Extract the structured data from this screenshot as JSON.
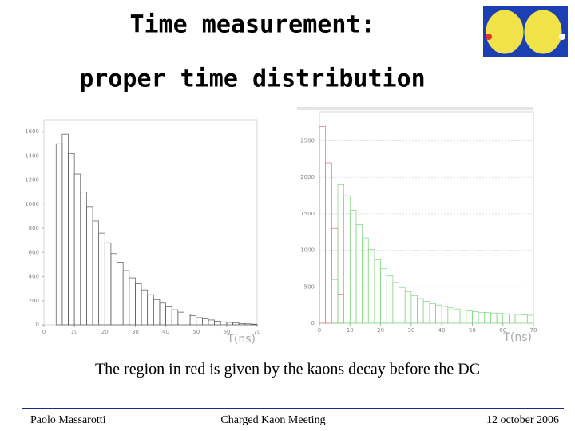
{
  "slide": {
    "title": "Time measurement:",
    "subtitle": "proper time distribution",
    "caption": "The region in red is given by the kaons decay before the DC",
    "footer": {
      "author": "Paolo Massarotti",
      "event": "Charged Kaon Meeting",
      "date": "12 october 2006"
    }
  },
  "chart_data": [
    {
      "type": "histogram",
      "x_label": "T(ns)",
      "bins": [
        0,
        2,
        4,
        6,
        8,
        10,
        12,
        14,
        16,
        18,
        20,
        22,
        24,
        26,
        28,
        30,
        32,
        34,
        36,
        38,
        40,
        42,
        44,
        46,
        48,
        50,
        52,
        54,
        56,
        58,
        60,
        62,
        64,
        66,
        68,
        70
      ],
      "series": [
        {
          "color": "#555555",
          "values": [
            0,
            0,
            1500,
            1580,
            1420,
            1250,
            1100,
            980,
            860,
            760,
            680,
            590,
            520,
            450,
            390,
            340,
            290,
            250,
            210,
            180,
            150,
            125,
            105,
            90,
            75,
            60,
            50,
            40,
            30,
            25,
            20,
            15,
            10,
            8,
            5
          ]
        }
      ],
      "xlim": [
        0,
        70
      ],
      "xticks": [
        0,
        10,
        20,
        30,
        40,
        50,
        60,
        70
      ],
      "ylim": [
        0,
        1700
      ],
      "yticks": [
        0,
        200,
        400,
        600,
        800,
        1000,
        1200,
        1400,
        1600
      ],
      "grid": false
    },
    {
      "type": "histogram",
      "x_label": "T(ns)",
      "bins": [
        0,
        2,
        4,
        6,
        8,
        10,
        12,
        14,
        16,
        18,
        20,
        22,
        24,
        26,
        28,
        30,
        32,
        34,
        36,
        38,
        40,
        42,
        44,
        46,
        48,
        50,
        52,
        54,
        56,
        58,
        60,
        62,
        64,
        66,
        68,
        70
      ],
      "series": [
        {
          "color": "#e07070",
          "values": [
            2700,
            2200,
            1300,
            400,
            0,
            0,
            0,
            0,
            0,
            0,
            0,
            0,
            0,
            0,
            0,
            0,
            0,
            0,
            0,
            0,
            0,
            0,
            0,
            0,
            0,
            0,
            0,
            0,
            0,
            0,
            0,
            0,
            0,
            0,
            0
          ]
        },
        {
          "color": "#7fd47f",
          "values": [
            0,
            0,
            600,
            1900,
            1750,
            1550,
            1350,
            1170,
            1010,
            870,
            750,
            650,
            560,
            490,
            430,
            380,
            340,
            300,
            270,
            250,
            230,
            210,
            195,
            180,
            170,
            160,
            150,
            145,
            140,
            135,
            130,
            125,
            120,
            115,
            110
          ]
        }
      ],
      "xlim": [
        0,
        70
      ],
      "xticks": [
        0,
        10,
        20,
        30,
        40,
        50,
        60,
        70
      ],
      "ylim": [
        0,
        2900
      ],
      "yticks": [
        0,
        500,
        1000,
        1500,
        2000,
        2500
      ],
      "grid": true
    }
  ]
}
